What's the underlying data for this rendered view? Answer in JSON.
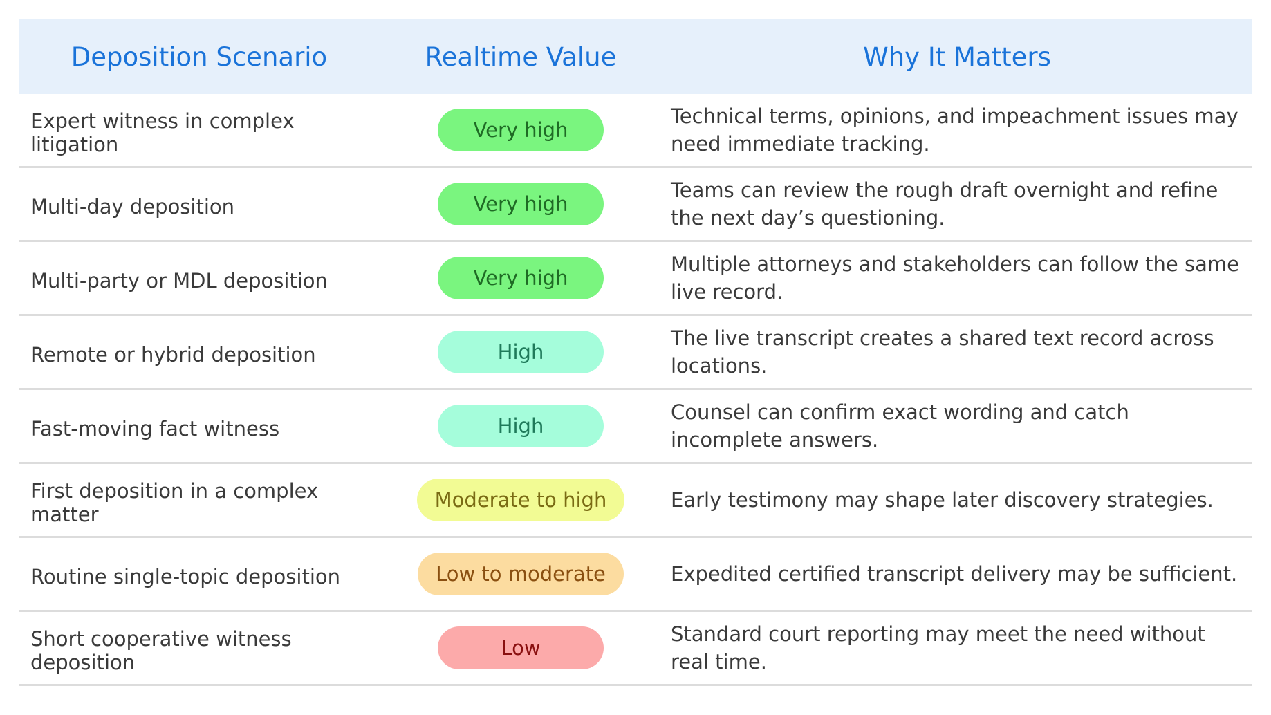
{
  "headers": {
    "scenario": "Deposition Scenario",
    "value": "Realtime Value",
    "why": "Why It Matters"
  },
  "colors": {
    "header_bg": "#e6f0fb",
    "header_text": "#1a73d9",
    "very_high_bg": "#7af57f",
    "very_high_text": "#1f6b25",
    "high_bg": "#a5fddb",
    "high_text": "#1f7a5a",
    "moderate_to_high_bg": "#f2fb94",
    "moderate_to_high_text": "#7a6b14",
    "low_to_moderate_bg": "#fcdca0",
    "low_to_moderate_text": "#8a4f10",
    "low_bg": "#fcaaaa",
    "low_text": "#8a1010"
  },
  "rows": [
    {
      "scenario": "Expert witness in complex litigation",
      "value": "Very high",
      "level": "very_high",
      "why": "Technical terms, opinions, and impeachment issues may need immediate tracking."
    },
    {
      "scenario": "Multi-day deposition",
      "value": "Very high",
      "level": "very_high",
      "why": "Teams can review the rough draft overnight and refine the next day’s questioning."
    },
    {
      "scenario": "Multi-party or MDL deposition",
      "value": "Very high",
      "level": "very_high",
      "why": "Multiple attorneys and stakeholders can follow the same live record."
    },
    {
      "scenario": "Remote or hybrid deposition",
      "value": "High",
      "level": "high",
      "why": "The live transcript creates a shared text record across locations."
    },
    {
      "scenario": "Fast-moving fact witness",
      "value": "High",
      "level": "high",
      "why": "Counsel can confirm exact wording and catch incomplete answers."
    },
    {
      "scenario": "First deposition in a complex matter",
      "value": "Moderate to high",
      "level": "moderate_to_high",
      "why": "Early testimony may shape later discovery strategies."
    },
    {
      "scenario": "Routine single-topic deposition",
      "value": "Low to moderate",
      "level": "low_to_moderate",
      "why": "Expedited certified transcript delivery may be sufficient."
    },
    {
      "scenario": "Short cooperative witness deposition",
      "value": "Low",
      "level": "low",
      "why": "Standard court reporting may meet the need without real time."
    }
  ]
}
